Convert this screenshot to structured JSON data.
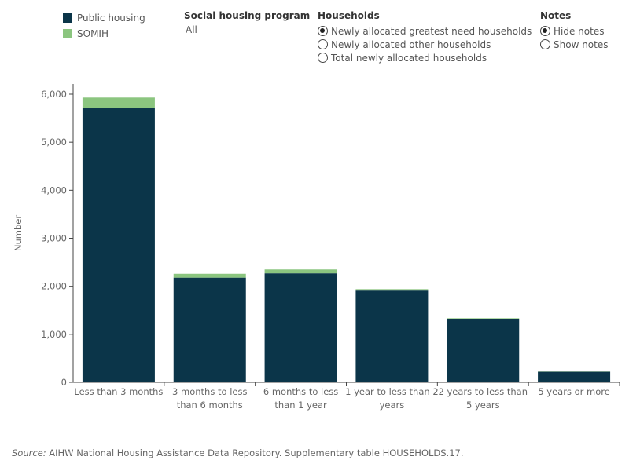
{
  "legend": {
    "items": [
      {
        "label": "Public housing",
        "color": "#0b3549"
      },
      {
        "label": "SOMIH",
        "color": "#8bc57f"
      }
    ]
  },
  "filters": {
    "program": {
      "title": "Social housing program",
      "value": "All"
    },
    "households": {
      "title": "Households",
      "options": [
        {
          "label": "Newly allocated greatest need households",
          "checked": true
        },
        {
          "label": "Newly allocated other households",
          "checked": false
        },
        {
          "label": "Total newly allocated households",
          "checked": false
        }
      ]
    },
    "notes": {
      "title": "Notes",
      "options": [
        {
          "label": "Hide notes",
          "checked": true
        },
        {
          "label": "Show notes",
          "checked": false
        }
      ]
    }
  },
  "chart_data": {
    "type": "bar",
    "stacked": true,
    "categories": [
      [
        "Less than 3 months"
      ],
      [
        "3 months to less",
        "than 6 months"
      ],
      [
        "6 months to less",
        "than 1 year"
      ],
      [
        "1 year to less than 2",
        "years"
      ],
      [
        "2 years to less than",
        "5 years"
      ],
      [
        "5 years or more"
      ]
    ],
    "series": [
      {
        "name": "Public housing",
        "color": "#0b3549",
        "values": [
          5720,
          2180,
          2270,
          1910,
          1320,
          220
        ]
      },
      {
        "name": "SOMIH",
        "color": "#8bc57f",
        "values": [
          210,
          80,
          80,
          30,
          15,
          5
        ]
      }
    ],
    "ylabel": "Number",
    "ylim": [
      0,
      6000
    ],
    "yticks": [
      0,
      1000,
      2000,
      3000,
      4000,
      5000,
      6000
    ],
    "ytick_labels": [
      "0",
      "1,000",
      "2,000",
      "3,000",
      "4,000",
      "5,000",
      "6,000"
    ],
    "grid": false
  },
  "source": {
    "label": "Source:",
    "text": " AIHW National Housing Assistance Data Repository. Supplementary table HOUSEHOLDS.17."
  }
}
